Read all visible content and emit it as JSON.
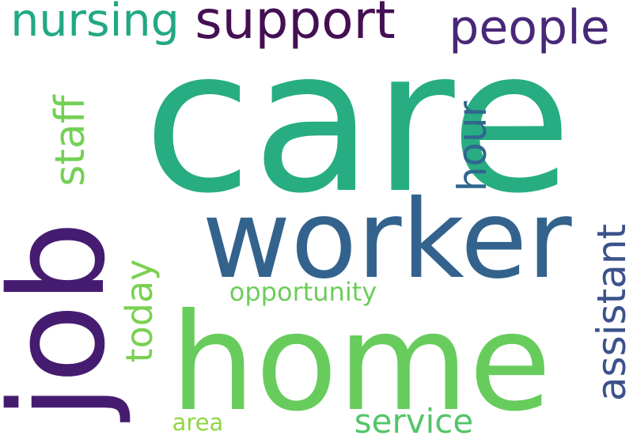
{
  "words": [
    {
      "text": "care",
      "color": "#27AD81"
    },
    {
      "text": "worker",
      "color": "#33638D"
    },
    {
      "text": "home",
      "color": "#67CC5C"
    },
    {
      "text": "job",
      "color": "#461C70"
    },
    {
      "text": "support",
      "color": "#440F53"
    },
    {
      "text": "people",
      "color": "#482878"
    },
    {
      "text": "nursing",
      "color": "#22A884"
    },
    {
      "text": "staff",
      "color": "#74D055"
    },
    {
      "text": "hour",
      "color": "#31668E"
    },
    {
      "text": "assistant",
      "color": "#3B528B"
    },
    {
      "text": "today",
      "color": "#7AD151"
    },
    {
      "text": "opportunity",
      "color": "#6CCD5A"
    },
    {
      "text": "service",
      "color": "#52C569"
    },
    {
      "text": "area",
      "color": "#90D743"
    }
  ]
}
